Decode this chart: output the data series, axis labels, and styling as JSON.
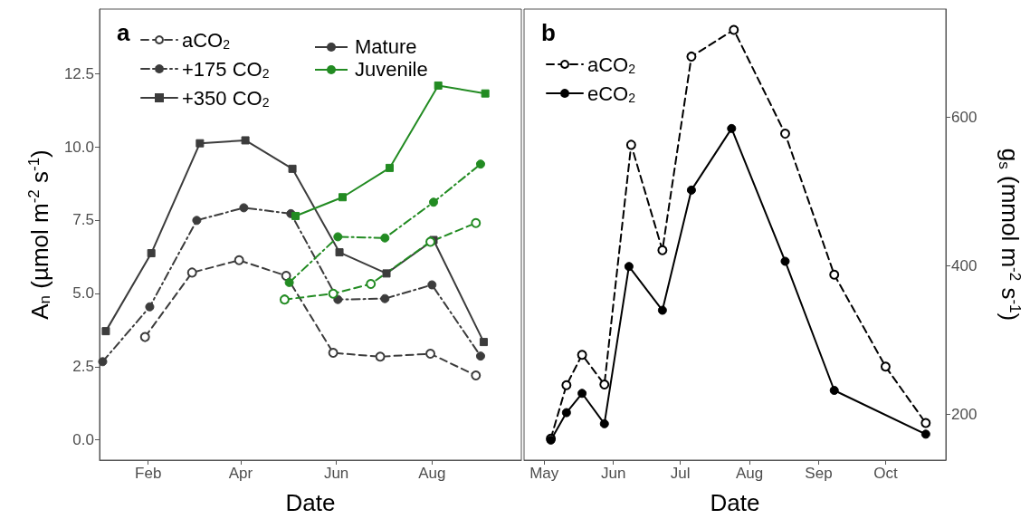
{
  "chart_data": [
    {
      "type": "line",
      "title": "a",
      "xlabel": "Date",
      "ylabel": "A$_{n}$ (µmol m$^{-2}$ s$^{-1}$)",
      "xlim": [
        "--01-01",
        "--09-27"
      ],
      "xticks": [
        {
          "value": "--02-01",
          "label": "Feb"
        },
        {
          "value": "--04-01",
          "label": "Apr"
        },
        {
          "value": "--06-01",
          "label": "Jun"
        },
        {
          "value": "--08-01",
          "label": "Aug"
        }
      ],
      "ylim": [
        -0.69,
        14.7
      ],
      "yticks": [
        {
          "value": 0,
          "label": "0.0"
        },
        {
          "value": 2.5,
          "label": "2.5"
        },
        {
          "value": 5,
          "label": "5.0"
        },
        {
          "value": 7.5,
          "label": "7.5"
        },
        {
          "value": 10,
          "label": "10.0"
        },
        {
          "value": 12.5,
          "label": "12.5"
        }
      ],
      "grid": false,
      "legend": "top left",
      "annotations": [
        "Mature",
        "Juvenile"
      ],
      "series": [
        {
          "name": "aCO$_{2}$",
          "color": "#3c3c3c",
          "marker": "circle",
          "line_style": "dashed",
          "x": [
            "--01-30",
            "--03-01",
            "--03-31",
            "--04-30",
            "--05-30",
            "--06-29",
            "--07-31",
            "--08-29"
          ],
          "values": [
            3.51,
            5.71,
            6.13,
            5.6,
            2.97,
            2.84,
            2.94,
            2.2
          ]
        },
        {
          "name": "+175 CO$_{2}$",
          "color": "#3c3c3c",
          "marker": "circle",
          "line_style": "dashdot",
          "x": [
            "--01-03",
            "--02-02",
            "--03-04",
            "--04-03",
            "--05-03",
            "--06-02",
            "--07-02",
            "--08-01",
            "--09-01"
          ],
          "values": [
            2.67,
            4.54,
            7.49,
            7.92,
            7.72,
            4.79,
            4.82,
            5.29,
            2.86
          ]
        },
        {
          "name": "+350 CO$_{2}$",
          "color": "#3c3c3c",
          "marker": "square",
          "line_style": "solid",
          "x": [
            "--01-05",
            "--02-03",
            "--03-06",
            "--04-04",
            "--05-04",
            "--06-03",
            "--07-03",
            "--08-02",
            "--09-03"
          ],
          "values": [
            3.71,
            6.37,
            10.12,
            10.22,
            9.25,
            6.4,
            5.68,
            6.82,
            3.34
          ]
        },
        {
          "color": "#228b22",
          "marker": "circle",
          "line_style": "dashed",
          "x": [
            "--04-29",
            "--05-30",
            "--06-23",
            "--07-31",
            "--08-29"
          ],
          "values": [
            4.79,
            4.99,
            5.32,
            6.76,
            7.4
          ]
        },
        {
          "color": "#228b22",
          "marker": "circle",
          "line_style": "dashdot",
          "x": [
            "--05-02",
            "--06-02",
            "--07-02",
            "--08-02",
            "--09-01"
          ],
          "values": [
            5.37,
            6.93,
            6.89,
            8.11,
            9.41
          ]
        },
        {
          "color": "#228b22",
          "marker": "square",
          "line_style": "solid",
          "x": [
            "--05-06",
            "--06-05",
            "--07-05",
            "--08-05",
            "--09-04"
          ],
          "values": [
            7.64,
            8.28,
            9.28,
            12.09,
            11.82
          ]
        }
      ]
    },
    {
      "type": "line",
      "title": "b",
      "xlabel": "Date",
      "y2label": "g$_{s}$ (mmol m$^{-2}$ s$^{-1}$)",
      "xlim": [
        "--04-22",
        "--10-28"
      ],
      "xticks": [
        {
          "value": "--05-01",
          "label": "May"
        },
        {
          "value": "--06-01",
          "label": "Jun"
        },
        {
          "value": "--07-01",
          "label": "Jul"
        },
        {
          "value": "--08-01",
          "label": "Aug"
        },
        {
          "value": "--09-01",
          "label": "Sep"
        },
        {
          "value": "--10-01",
          "label": "Oct"
        }
      ],
      "y2lim": [
        138,
        746
      ],
      "y2ticks": [
        200,
        400,
        600
      ],
      "grid": false,
      "legend": "top left",
      "series": [
        {
          "name": "aCO$_{2}$",
          "color": "#000000",
          "axis": "y2",
          "marker": "circle",
          "line_style": "dashed",
          "x": [
            "--05-04",
            "--05-11",
            "--05-18",
            "--05-28",
            "--06-09",
            "--06-23",
            "--07-06",
            "--07-25",
            "--08-17",
            "--09-08",
            "--10-01",
            "--10-19"
          ],
          "values": [
            167,
            239,
            280,
            240,
            563,
            421,
            682,
            718,
            578,
            388,
            264,
            188
          ]
        },
        {
          "name": "eCO$_{2}$",
          "color": "#000000",
          "axis": "y2",
          "marker": "circle",
          "line_style": "solid",
          "x": [
            "--05-04",
            "--05-11",
            "--05-18",
            "--05-28",
            "--06-08",
            "--06-23",
            "--07-06",
            "--07-24",
            "--08-17",
            "--09-08",
            "--10-19"
          ],
          "values": [
            165,
            202,
            228,
            187,
            399,
            340,
            502,
            585,
            406,
            232,
            173
          ]
        }
      ]
    }
  ]
}
